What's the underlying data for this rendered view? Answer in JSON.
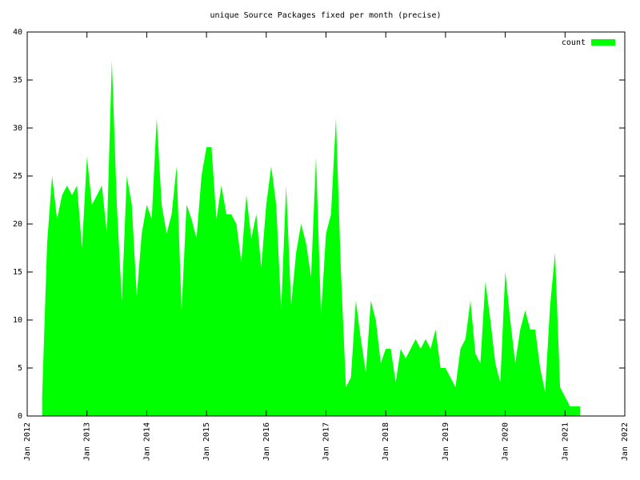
{
  "chart_data": {
    "type": "area",
    "title": "unique Source Packages fixed per month (precise)",
    "x": [
      "2012-04",
      "2012-05",
      "2012-06",
      "2012-07",
      "2012-08",
      "2012-09",
      "2012-10",
      "2012-11",
      "2012-12",
      "2013-01",
      "2013-02",
      "2013-03",
      "2013-04",
      "2013-05",
      "2013-06",
      "2013-07",
      "2013-08",
      "2013-09",
      "2013-10",
      "2013-11",
      "2013-12",
      "2014-01",
      "2014-02",
      "2014-03",
      "2014-04",
      "2014-05",
      "2014-06",
      "2014-07",
      "2014-08",
      "2014-09",
      "2014-10",
      "2014-11",
      "2014-12",
      "2015-01",
      "2015-02",
      "2015-03",
      "2015-04",
      "2015-05",
      "2015-06",
      "2015-07",
      "2015-08",
      "2015-09",
      "2015-10",
      "2015-11",
      "2015-12",
      "2016-01",
      "2016-02",
      "2016-03",
      "2016-04",
      "2016-05",
      "2016-06",
      "2016-07",
      "2016-08",
      "2016-09",
      "2016-10",
      "2016-11",
      "2016-12",
      "2017-01",
      "2017-02",
      "2017-03",
      "2017-04",
      "2017-05",
      "2017-06",
      "2017-07",
      "2017-08",
      "2017-09",
      "2017-10",
      "2017-11",
      "2017-12",
      "2018-01",
      "2018-02",
      "2018-03",
      "2018-04",
      "2018-05",
      "2018-06",
      "2018-07",
      "2018-08",
      "2018-09",
      "2018-10",
      "2018-11",
      "2018-12",
      "2019-01",
      "2019-02",
      "2019-03",
      "2019-04",
      "2019-05",
      "2019-06",
      "2019-07",
      "2019-08",
      "2019-09",
      "2019-10",
      "2019-11",
      "2019-12",
      "2020-01",
      "2020-02",
      "2020-03",
      "2020-04",
      "2020-05",
      "2020-06",
      "2020-07",
      "2020-08",
      "2020-09",
      "2020-10",
      "2020-11",
      "2020-12",
      "2021-01",
      "2021-02",
      "2021-03",
      "2021-04"
    ],
    "series": [
      {
        "name": "count",
        "color": "#00ff00",
        "values": [
          2,
          18,
          25,
          20.5,
          23,
          24,
          23,
          24,
          17.5,
          27,
          22,
          23,
          24,
          19,
          37,
          22,
          12,
          25,
          22,
          12.5,
          19,
          22,
          20.5,
          31,
          22,
          19,
          21,
          26,
          11,
          22,
          20.5,
          18.5,
          25,
          28,
          28,
          20.5,
          24,
          21,
          21,
          20,
          16,
          23,
          18.5,
          21,
          15.5,
          22,
          26,
          22,
          11,
          24,
          11.5,
          17,
          20,
          18,
          14.5,
          27,
          10.5,
          19,
          21,
          31,
          15,
          3,
          4,
          12,
          8,
          4.5,
          12,
          10,
          5.5,
          7,
          7,
          3.5,
          7,
          6,
          7,
          8,
          7,
          8,
          7,
          9,
          5,
          5,
          4,
          3,
          7,
          8,
          12,
          6.5,
          5.5,
          14,
          10,
          5.5,
          3.5,
          15,
          10,
          5.5,
          9,
          11,
          9,
          9,
          5,
          2.5,
          11.5,
          17,
          3,
          2,
          1,
          1,
          1
        ]
      }
    ],
    "xlim": [
      "2012-01",
      "2022-01"
    ],
    "xticks": [
      {
        "value": "2012-01",
        "label": "Jan 2012"
      },
      {
        "value": "2013-01",
        "label": "Jan 2013"
      },
      {
        "value": "2014-01",
        "label": "Jan 2014"
      },
      {
        "value": "2015-01",
        "label": "Jan 2015"
      },
      {
        "value": "2016-01",
        "label": "Jan 2016"
      },
      {
        "value": "2017-01",
        "label": "Jan 2017"
      },
      {
        "value": "2018-01",
        "label": "Jan 2018"
      },
      {
        "value": "2019-01",
        "label": "Jan 2019"
      },
      {
        "value": "2020-01",
        "label": "Jan 2020"
      },
      {
        "value": "2021-01",
        "label": "Jan 2021"
      },
      {
        "value": "2022-01",
        "label": "Jan 2022"
      }
    ],
    "ylim": [
      0,
      40
    ],
    "yticks": [
      0,
      5,
      10,
      15,
      20,
      25,
      30,
      35,
      40
    ],
    "legend": "top right"
  }
}
